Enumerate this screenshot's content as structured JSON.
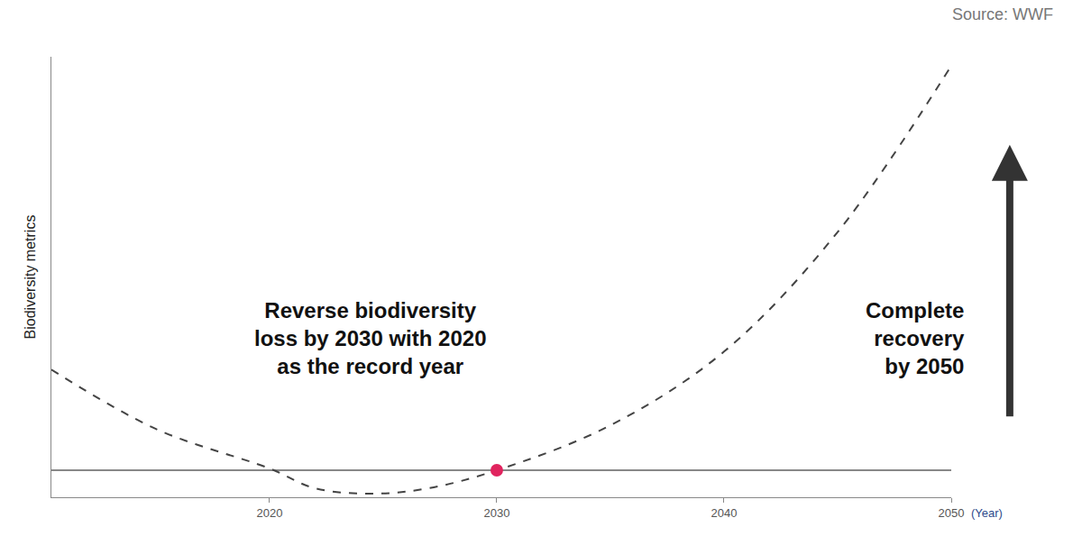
{
  "chart_data": {
    "type": "line",
    "source": "Source: WWF",
    "y_label": "Biodiversity metrics",
    "x_label": "(Year)",
    "annotations": [
      [
        "Reverse biodiversity",
        "loss by 2030 with 2020",
        "as the record year"
      ],
      [
        "Complete",
        "recovery",
        "by 2050"
      ]
    ],
    "xlim": [
      2010.4,
      2050
    ],
    "xticks": [
      2020,
      2030,
      2040,
      2050
    ],
    "ylim": [
      -3,
      46
    ],
    "tick_labels": "x",
    "grid": false,
    "series": [
      {
        "type": "line",
        "line_style": "dash",
        "color": "#444444",
        "x": [
          2010.4,
          2015,
          2020,
          2022,
          2024.5,
          2027,
          2030,
          2035,
          2040,
          2045,
          2050
        ],
        "values": [
          11.2,
          4.6,
          0.2,
          -2,
          -2.6,
          -2,
          0,
          5,
          13.2,
          26.5,
          45
        ]
      },
      {
        "type": "scatter",
        "marker": "circle",
        "color": "#e0245e",
        "x": [
          2030
        ],
        "values": [
          0
        ]
      }
    ]
  }
}
